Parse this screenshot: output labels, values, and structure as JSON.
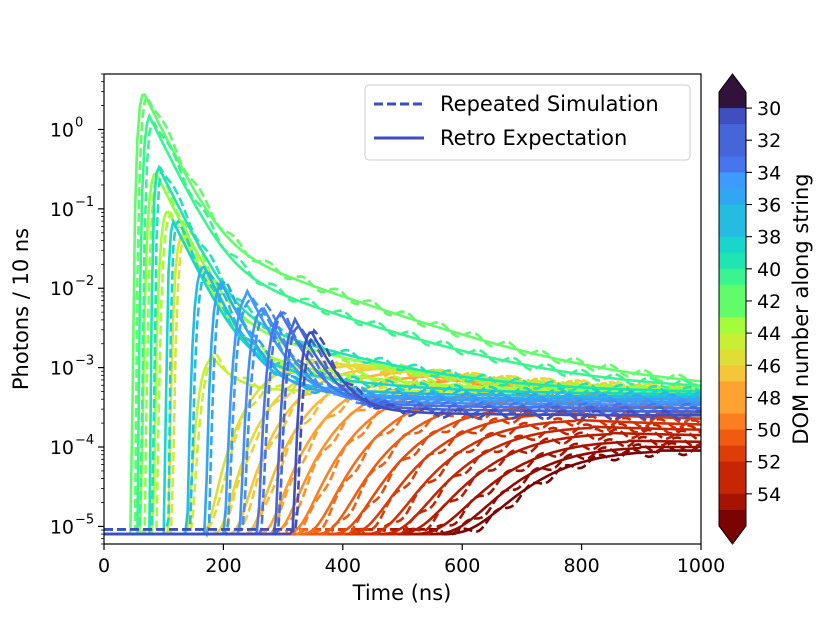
{
  "chart_data": {
    "type": "line",
    "xlabel": "Time (ns)",
    "ylabel": "Photons / 10 ns",
    "xlim": [
      0,
      1000
    ],
    "ylim": [
      6e-06,
      5
    ],
    "yscale": "log",
    "xticks": [
      "0",
      "200",
      "400",
      "600",
      "800",
      "1000"
    ],
    "yticks": [
      {
        "base": "10",
        "exp": "0",
        "value": 1
      },
      {
        "base": "10",
        "exp": "−1",
        "value": 0.1
      },
      {
        "base": "10",
        "exp": "−2",
        "value": 0.01
      },
      {
        "base": "10",
        "exp": "−3",
        "value": 0.001
      },
      {
        "base": "10",
        "exp": "−4",
        "value": 0.0001
      },
      {
        "base": "10",
        "exp": "−5",
        "value": 1e-05
      }
    ],
    "legend": {
      "position": "top-right",
      "entries": [
        {
          "label": "Repeated Simulation",
          "style": "dashed",
          "color": "#3a4ec0"
        },
        {
          "label": "Retro Expectation",
          "style": "solid",
          "color": "#3a4ec0"
        }
      ]
    },
    "colorbar": {
      "label": "DOM number along string",
      "min": 29,
      "max": 56,
      "ticks": [
        "30",
        "32",
        "34",
        "36",
        "38",
        "40",
        "42",
        "44",
        "46",
        "48",
        "50",
        "52",
        "54"
      ],
      "colormap": "turbo",
      "extend": "both"
    },
    "series": [
      {
        "dom": 55,
        "color": "#7a0403",
        "t0": 560,
        "peak_t": 930,
        "peak": 9e-05,
        "tail": 9e-05
      },
      {
        "dom": 54,
        "color": "#900c00",
        "t0": 540,
        "peak_t": 900,
        "peak": 0.0001,
        "tail": 0.0001
      },
      {
        "dom": 53,
        "color": "#a51301",
        "t0": 510,
        "peak_t": 880,
        "peak": 0.00012,
        "tail": 0.00011
      },
      {
        "dom": 52,
        "color": "#b61c02",
        "t0": 480,
        "peak_t": 850,
        "peak": 0.00015,
        "tail": 0.00013
      },
      {
        "dom": 51,
        "color": "#c52603",
        "t0": 455,
        "peak_t": 820,
        "peak": 0.00018,
        "tail": 0.00015
      },
      {
        "dom": 50,
        "color": "#d23105",
        "t0": 430,
        "peak_t": 790,
        "peak": 0.00022,
        "tail": 0.00017
      },
      {
        "dom": 49,
        "color": "#dd3e08",
        "t0": 400,
        "peak_t": 760,
        "peak": 0.00027,
        "tail": 0.0002
      },
      {
        "dom": 48,
        "color": "#e74b0c",
        "t0": 375,
        "peak_t": 730,
        "peak": 0.00033,
        "tail": 0.00023
      },
      {
        "dom": 47,
        "color": "#f05b12",
        "t0": 350,
        "peak_t": 700,
        "peak": 0.0004,
        "tail": 0.00026
      },
      {
        "dom": 46,
        "color": "#f66b18",
        "t0": 325,
        "peak_t": 660,
        "peak": 0.0005,
        "tail": 0.0003
      },
      {
        "dom": 45,
        "color": "#fb7e21",
        "t0": 300,
        "peak_t": 620,
        "peak": 0.0006,
        "tail": 0.00033
      },
      {
        "dom": 44,
        "color": "#fe922a",
        "t0": 275,
        "peak_t": 580,
        "peak": 0.0007,
        "tail": 0.00036
      },
      {
        "dom": 43,
        "color": "#fea331",
        "t0": 255,
        "peak_t": 540,
        "peak": 0.0008,
        "tail": 0.00039
      },
      {
        "dom": 42,
        "color": "#fbb938",
        "t0": 230,
        "peak_t": 500,
        "peak": 0.0009,
        "tail": 0.00042
      },
      {
        "dom": 41,
        "color": "#f5c63a",
        "t0": 205,
        "peak_t": 460,
        "peak": 0.001,
        "tail": 0.00044
      },
      {
        "dom": 40,
        "color": "#ecd53a",
        "t0": 180,
        "peak_t": 420,
        "peak": 0.0011,
        "tail": 0.00046
      },
      {
        "dom": 39,
        "color": "#e1dd37",
        "t0": 160,
        "peak_t": 360,
        "peak": 0.0012,
        "tail": 0.00048
      },
      {
        "dom": 38,
        "color": "#c8ef34",
        "t0": 130,
        "peak_t": 180,
        "peak": 0.0014,
        "tail": 0.0005
      },
      {
        "dom": 37,
        "color": "#d3e836",
        "t0": 105,
        "peak_t": 130,
        "peak": 0.05,
        "tail": 0.0005
      },
      {
        "dom": 36,
        "color": "#a4fc3c",
        "t0": 80,
        "peak_t": 105,
        "peak": 0.1,
        "tail": 0.0005
      },
      {
        "dom": 35,
        "color": "#8efd45",
        "t0": 60,
        "peak_t": 85,
        "peak": 0.3,
        "tail": 0.0005
      },
      {
        "dom": 34,
        "color": "#62fc6b",
        "t0": 45,
        "peak_t": 65,
        "peak": 3.0,
        "tail": 0.0005
      },
      {
        "dom": 33,
        "color": "#3af58e",
        "t0": 55,
        "peak_t": 75,
        "peak": 1.5,
        "tail": 0.0005
      },
      {
        "dom": 32,
        "color": "#1ee5b1",
        "t0": 75,
        "peak_t": 90,
        "peak": 0.35,
        "tail": 0.00048
      },
      {
        "dom": 31,
        "color": "#18d6cb",
        "t0": 100,
        "peak_t": 115,
        "peak": 0.07,
        "tail": 0.00046
      },
      {
        "dom": 30,
        "color": "#26bce1",
        "t0": 135,
        "peak_t": 165,
        "peak": 0.02,
        "tail": 0.00043
      },
      {
        "dom": 29,
        "color": "#31a7f2",
        "t0": 165,
        "peak_t": 195,
        "peak": 0.012,
        "tail": 0.0004
      },
      {
        "dom": 28,
        "color": "#3e9bfe",
        "t0": 195,
        "peak_t": 240,
        "peak": 0.009,
        "tail": 0.00037
      },
      {
        "dom": 27,
        "color": "#448ff3",
        "t0": 220,
        "peak_t": 265,
        "peak": 0.006,
        "tail": 0.00034
      },
      {
        "dom": 26,
        "color": "#4675ed",
        "t0": 250,
        "peak_t": 295,
        "peak": 0.005,
        "tail": 0.00031
      },
      {
        "dom": 25,
        "color": "#4565d9",
        "t0": 280,
        "peak_t": 320,
        "peak": 0.004,
        "tail": 0.00028
      },
      {
        "dom": 24,
        "color": "#3f4fc0",
        "t0": 310,
        "peak_t": 345,
        "peak": 0.003,
        "tail": 0.00025
      }
    ]
  }
}
